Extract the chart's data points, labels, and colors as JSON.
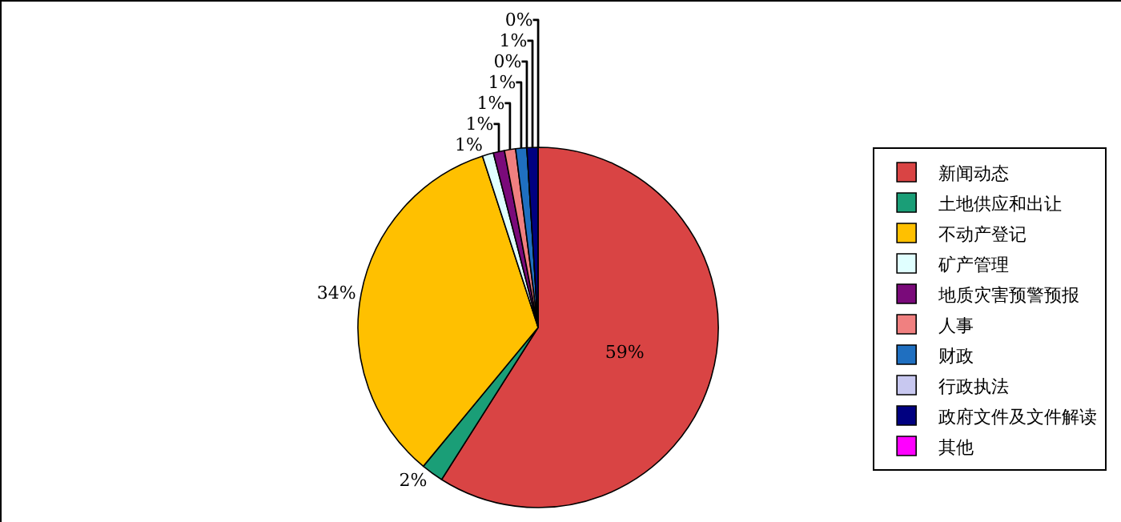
{
  "chart_data": {
    "type": "pie",
    "categories": [
      "新闻动态",
      "土地供应和出让",
      "不动产登记",
      "矿产管理",
      "地质灾害预警预报",
      "人事",
      "财政",
      "行政执法",
      "政府文件及文件解读",
      "其他"
    ],
    "values": [
      59,
      2,
      34,
      1,
      1,
      1,
      1,
      0,
      1,
      0
    ],
    "value_labels": [
      "59%",
      "2%",
      "34%",
      "1%",
      "1%",
      "1%",
      "1%",
      "0%",
      "1%",
      "0%"
    ],
    "colors": [
      "#d94444",
      "#1a9e77",
      "#ffc000",
      "#e0ffff",
      "#7a0a7a",
      "#f08080",
      "#1f6fc0",
      "#c8c8f0",
      "#000080",
      "#ff00ff"
    ],
    "legend": "right"
  }
}
